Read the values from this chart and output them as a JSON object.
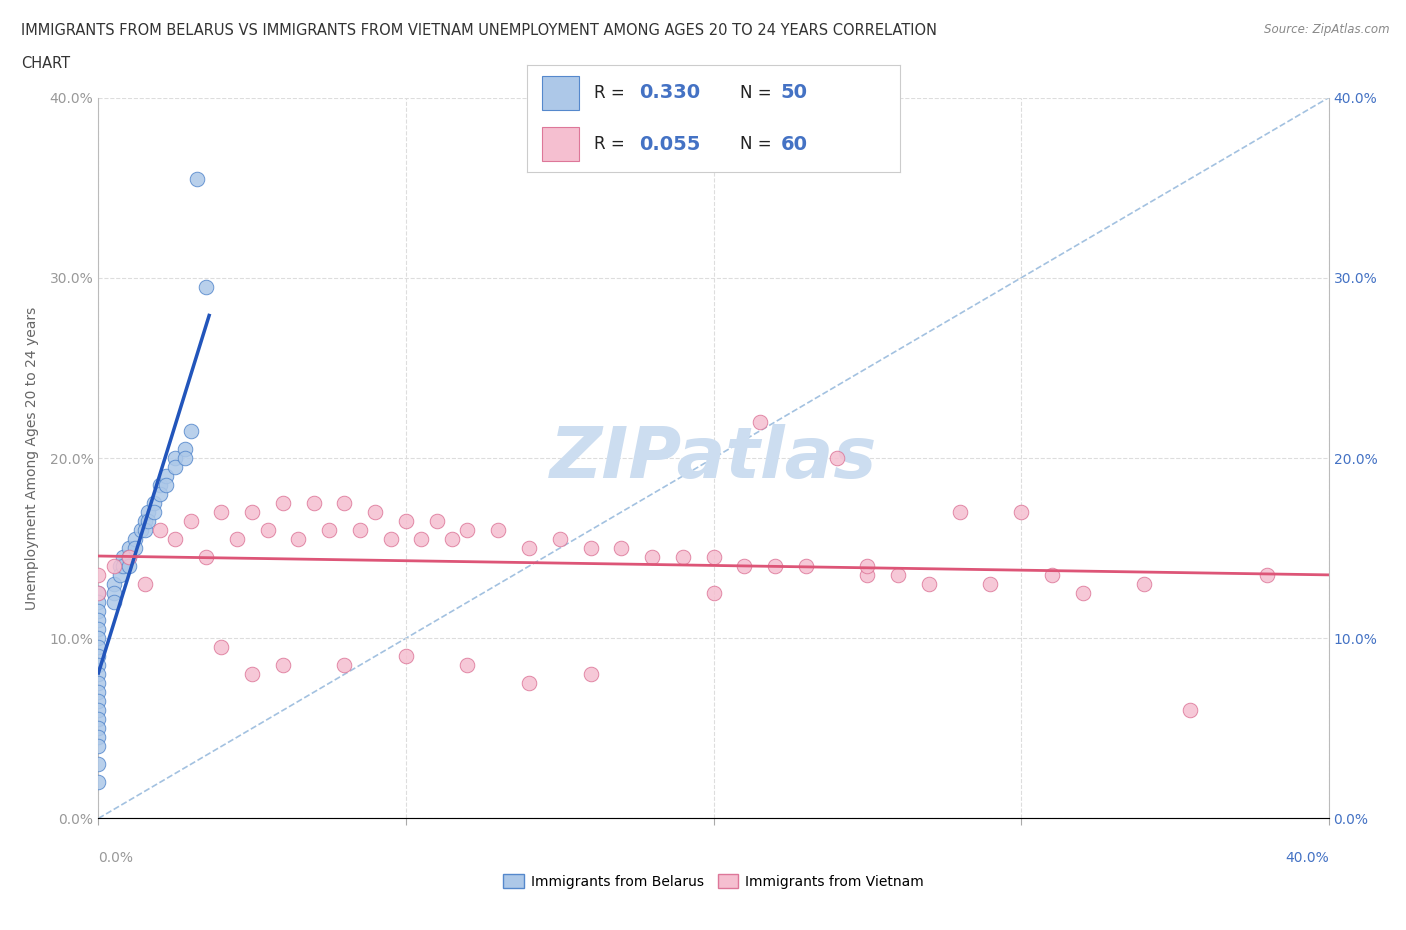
{
  "title_line1": "IMMIGRANTS FROM BELARUS VS IMMIGRANTS FROM VIETNAM UNEMPLOYMENT AMONG AGES 20 TO 24 YEARS CORRELATION",
  "title_line2": "CHART",
  "source": "Source: ZipAtlas.com",
  "ylabel": "Unemployment Among Ages 20 to 24 years",
  "xlim": [
    0.0,
    0.4
  ],
  "ylim": [
    0.0,
    0.4
  ],
  "xticks": [
    0.0,
    0.1,
    0.2,
    0.3,
    0.4
  ],
  "yticks": [
    0.0,
    0.1,
    0.2,
    0.3,
    0.4
  ],
  "xticklabels_plot": [
    "",
    "",
    "",
    "",
    ""
  ],
  "yticklabels": [
    "0.0%",
    "10.0%",
    "20.0%",
    "30.0%",
    "40.0%"
  ],
  "background_color": "#ffffff",
  "grid_color": "#dddddd",
  "belarus_color": "#adc8e8",
  "belarus_edge_color": "#5588cc",
  "vietnam_color": "#f5bfd0",
  "vietnam_edge_color": "#dd7799",
  "belarus_line_color": "#2255bb",
  "vietnam_line_color": "#dd5577",
  "diag_color": "#aabbdd",
  "legend_belarus_label": "Immigrants from Belarus",
  "legend_vietnam_label": "Immigrants from Vietnam",
  "R_belarus": 0.33,
  "N_belarus": 50,
  "R_vietnam": 0.055,
  "N_vietnam": 60,
  "watermark_color": "#ccddf0",
  "belarus_x": [
    0.0,
    0.0,
    0.0,
    0.0,
    0.0,
    0.0,
    0.0,
    0.0,
    0.0,
    0.0,
    0.0,
    0.0,
    0.0,
    0.0,
    0.0,
    0.0,
    0.0,
    0.0,
    0.0,
    0.0,
    0.005,
    0.005,
    0.005,
    0.007,
    0.007,
    0.008,
    0.008,
    0.01,
    0.01,
    0.01,
    0.012,
    0.012,
    0.014,
    0.015,
    0.015,
    0.016,
    0.016,
    0.018,
    0.018,
    0.02,
    0.02,
    0.022,
    0.022,
    0.025,
    0.025,
    0.028,
    0.028,
    0.03,
    0.032,
    0.035
  ],
  "belarus_y": [
    0.125,
    0.12,
    0.115,
    0.11,
    0.105,
    0.1,
    0.095,
    0.09,
    0.085,
    0.08,
    0.075,
    0.07,
    0.065,
    0.06,
    0.055,
    0.05,
    0.045,
    0.04,
    0.03,
    0.02,
    0.13,
    0.125,
    0.12,
    0.14,
    0.135,
    0.145,
    0.14,
    0.15,
    0.145,
    0.14,
    0.155,
    0.15,
    0.16,
    0.165,
    0.16,
    0.17,
    0.165,
    0.175,
    0.17,
    0.185,
    0.18,
    0.19,
    0.185,
    0.2,
    0.195,
    0.205,
    0.2,
    0.215,
    0.355,
    0.295
  ],
  "vietnam_x": [
    0.0,
    0.0,
    0.005,
    0.01,
    0.015,
    0.02,
    0.025,
    0.03,
    0.035,
    0.04,
    0.045,
    0.05,
    0.055,
    0.06,
    0.065,
    0.07,
    0.075,
    0.08,
    0.085,
    0.09,
    0.095,
    0.1,
    0.105,
    0.11,
    0.115,
    0.12,
    0.13,
    0.14,
    0.15,
    0.16,
    0.17,
    0.18,
    0.19,
    0.2,
    0.21,
    0.215,
    0.22,
    0.23,
    0.24,
    0.25,
    0.26,
    0.27,
    0.28,
    0.29,
    0.3,
    0.31,
    0.32,
    0.34,
    0.355,
    0.38,
    0.04,
    0.06,
    0.08,
    0.1,
    0.12,
    0.14,
    0.16,
    0.05,
    0.25,
    0.2
  ],
  "vietnam_y": [
    0.135,
    0.125,
    0.14,
    0.145,
    0.13,
    0.16,
    0.155,
    0.165,
    0.145,
    0.17,
    0.155,
    0.17,
    0.16,
    0.175,
    0.155,
    0.175,
    0.16,
    0.175,
    0.16,
    0.17,
    0.155,
    0.165,
    0.155,
    0.165,
    0.155,
    0.16,
    0.16,
    0.15,
    0.155,
    0.15,
    0.15,
    0.145,
    0.145,
    0.145,
    0.14,
    0.22,
    0.14,
    0.14,
    0.2,
    0.135,
    0.135,
    0.13,
    0.17,
    0.13,
    0.17,
    0.135,
    0.125,
    0.13,
    0.06,
    0.135,
    0.095,
    0.085,
    0.085,
    0.09,
    0.085,
    0.075,
    0.08,
    0.08,
    0.14,
    0.125
  ]
}
